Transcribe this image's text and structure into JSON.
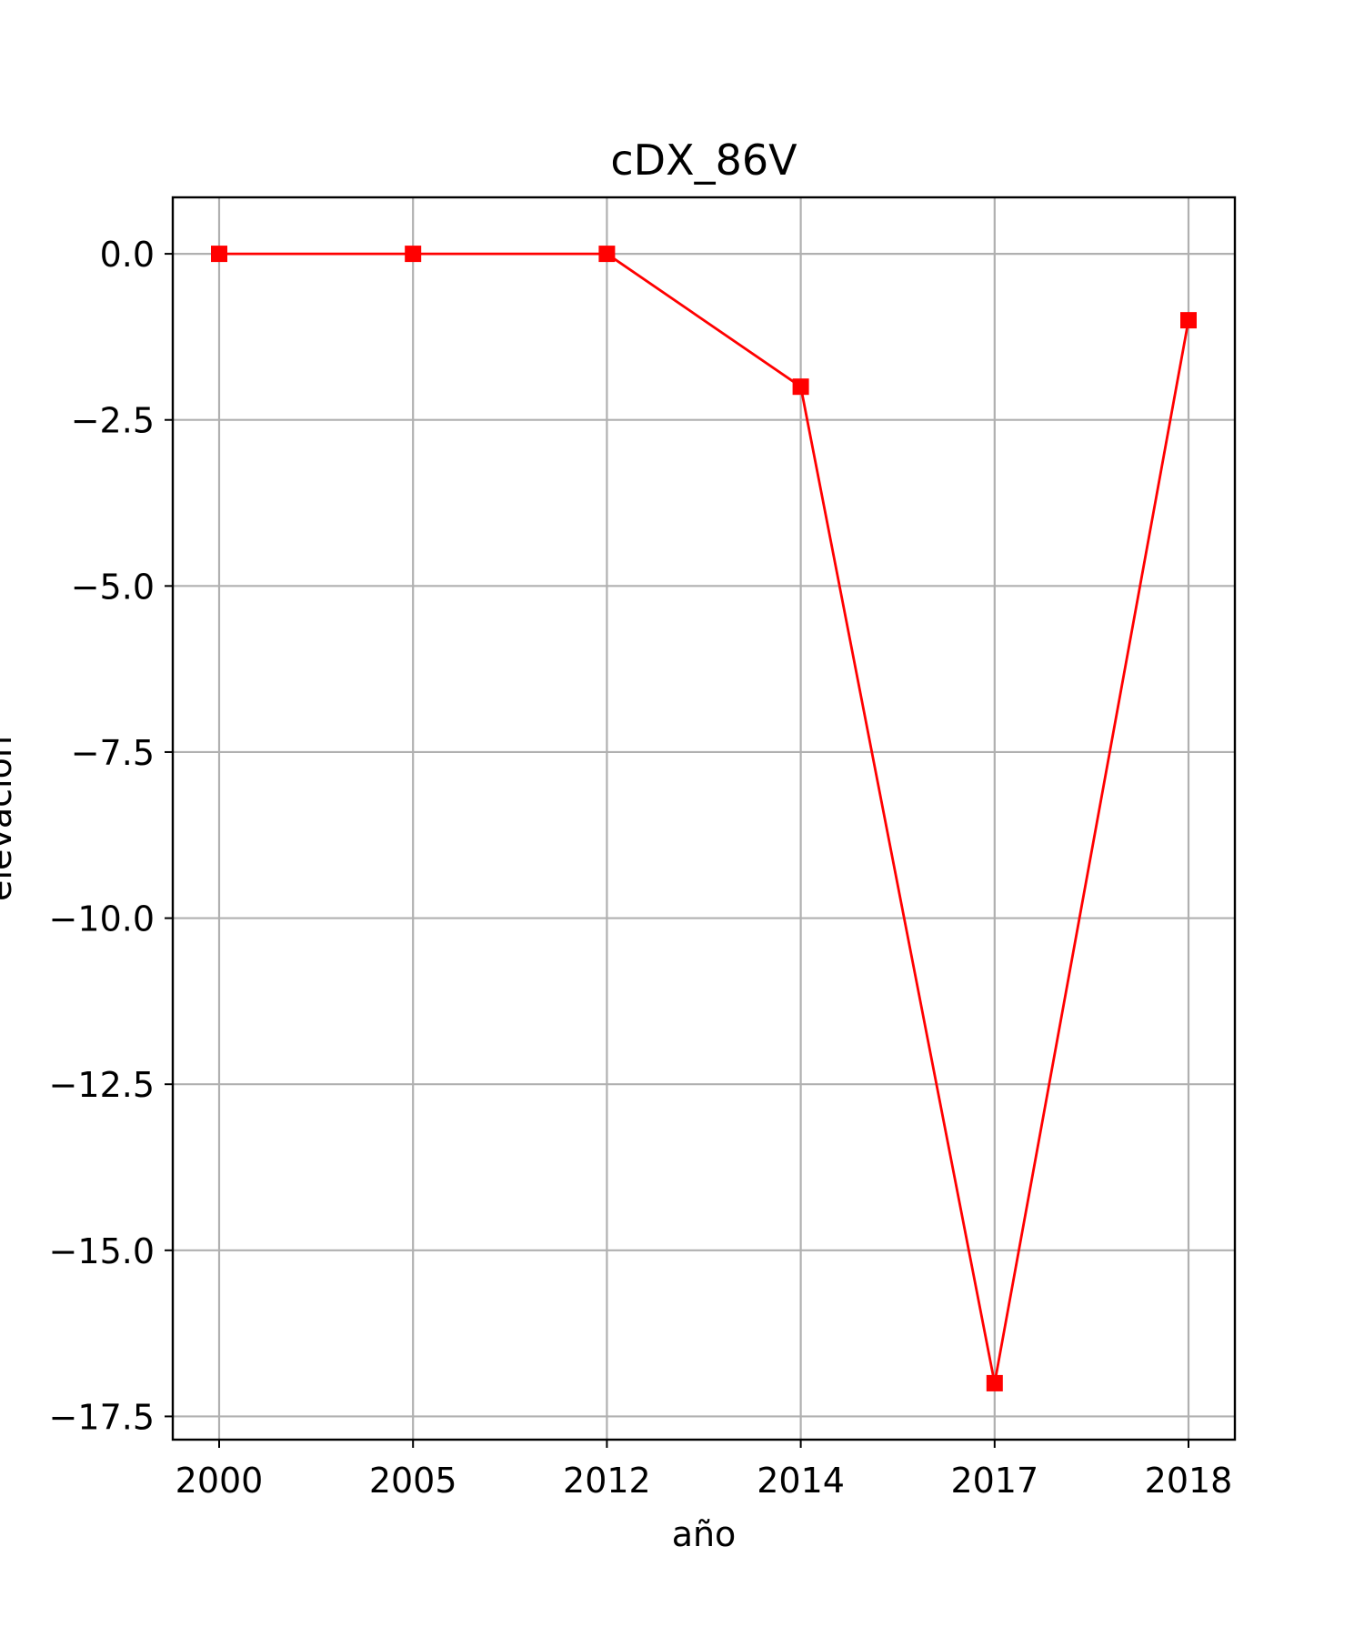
{
  "chart_data": {
    "type": "line",
    "title": "cDX_86V",
    "xlabel": "año",
    "ylabel": "elevación",
    "categories": [
      "2000",
      "2005",
      "2012",
      "2014",
      "2017",
      "2018"
    ],
    "series": [
      {
        "values": [
          0,
          0,
          0,
          -2,
          -17,
          -1
        ],
        "color": "#ff0000",
        "marker": "square"
      }
    ],
    "yticks": [
      0.0,
      -2.5,
      -5.0,
      -7.5,
      -10.0,
      -12.5,
      -15.0,
      -17.5
    ],
    "ytick_labels": [
      "0.0",
      "−2.5",
      "−5.0",
      "−7.5",
      "−10.0",
      "−12.5",
      "−15.0",
      "−17.5"
    ],
    "ylim": [
      -17.85,
      0.85
    ],
    "grid": true
  }
}
